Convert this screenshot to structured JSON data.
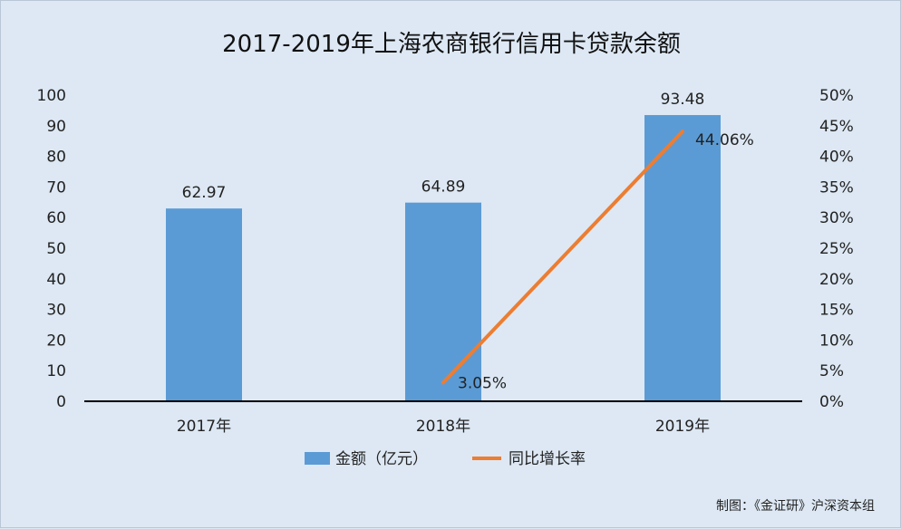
{
  "chart_data": {
    "type": "bar",
    "title": "2017-2019年上海农商银行信用卡贷款余额",
    "categories": [
      "2017年",
      "2018年",
      "2019年"
    ],
    "series": [
      {
        "name": "金额（亿元）",
        "type": "bar",
        "axis": "left",
        "values": [
          62.97,
          64.89,
          93.48
        ],
        "labels": [
          "62.97",
          "64.89",
          "93.48"
        ],
        "color": "#5b9bd5"
      },
      {
        "name": "同比增长率",
        "type": "line",
        "axis": "right",
        "values": [
          null,
          0.0305,
          0.4406
        ],
        "labels": [
          "",
          "3.05%",
          "44.06%"
        ],
        "color": "#ed7d31"
      }
    ],
    "y_left": {
      "min": 0,
      "max": 100,
      "ticks": [
        "0",
        "10",
        "20",
        "30",
        "40",
        "50",
        "60",
        "70",
        "80",
        "90",
        "100"
      ]
    },
    "y_right": {
      "min": 0,
      "max": 0.5,
      "ticks": [
        "0%",
        "5%",
        "10%",
        "15%",
        "20%",
        "25%",
        "30%",
        "35%",
        "40%",
        "45%",
        "50%"
      ]
    },
    "legend": "bottom",
    "grid": false
  },
  "credit": "制图：《金证研》沪深资本组",
  "colors": {
    "background": "#dde8f4",
    "bar": "#5b9bd5",
    "line": "#ed7d31",
    "axis": "#000000"
  }
}
